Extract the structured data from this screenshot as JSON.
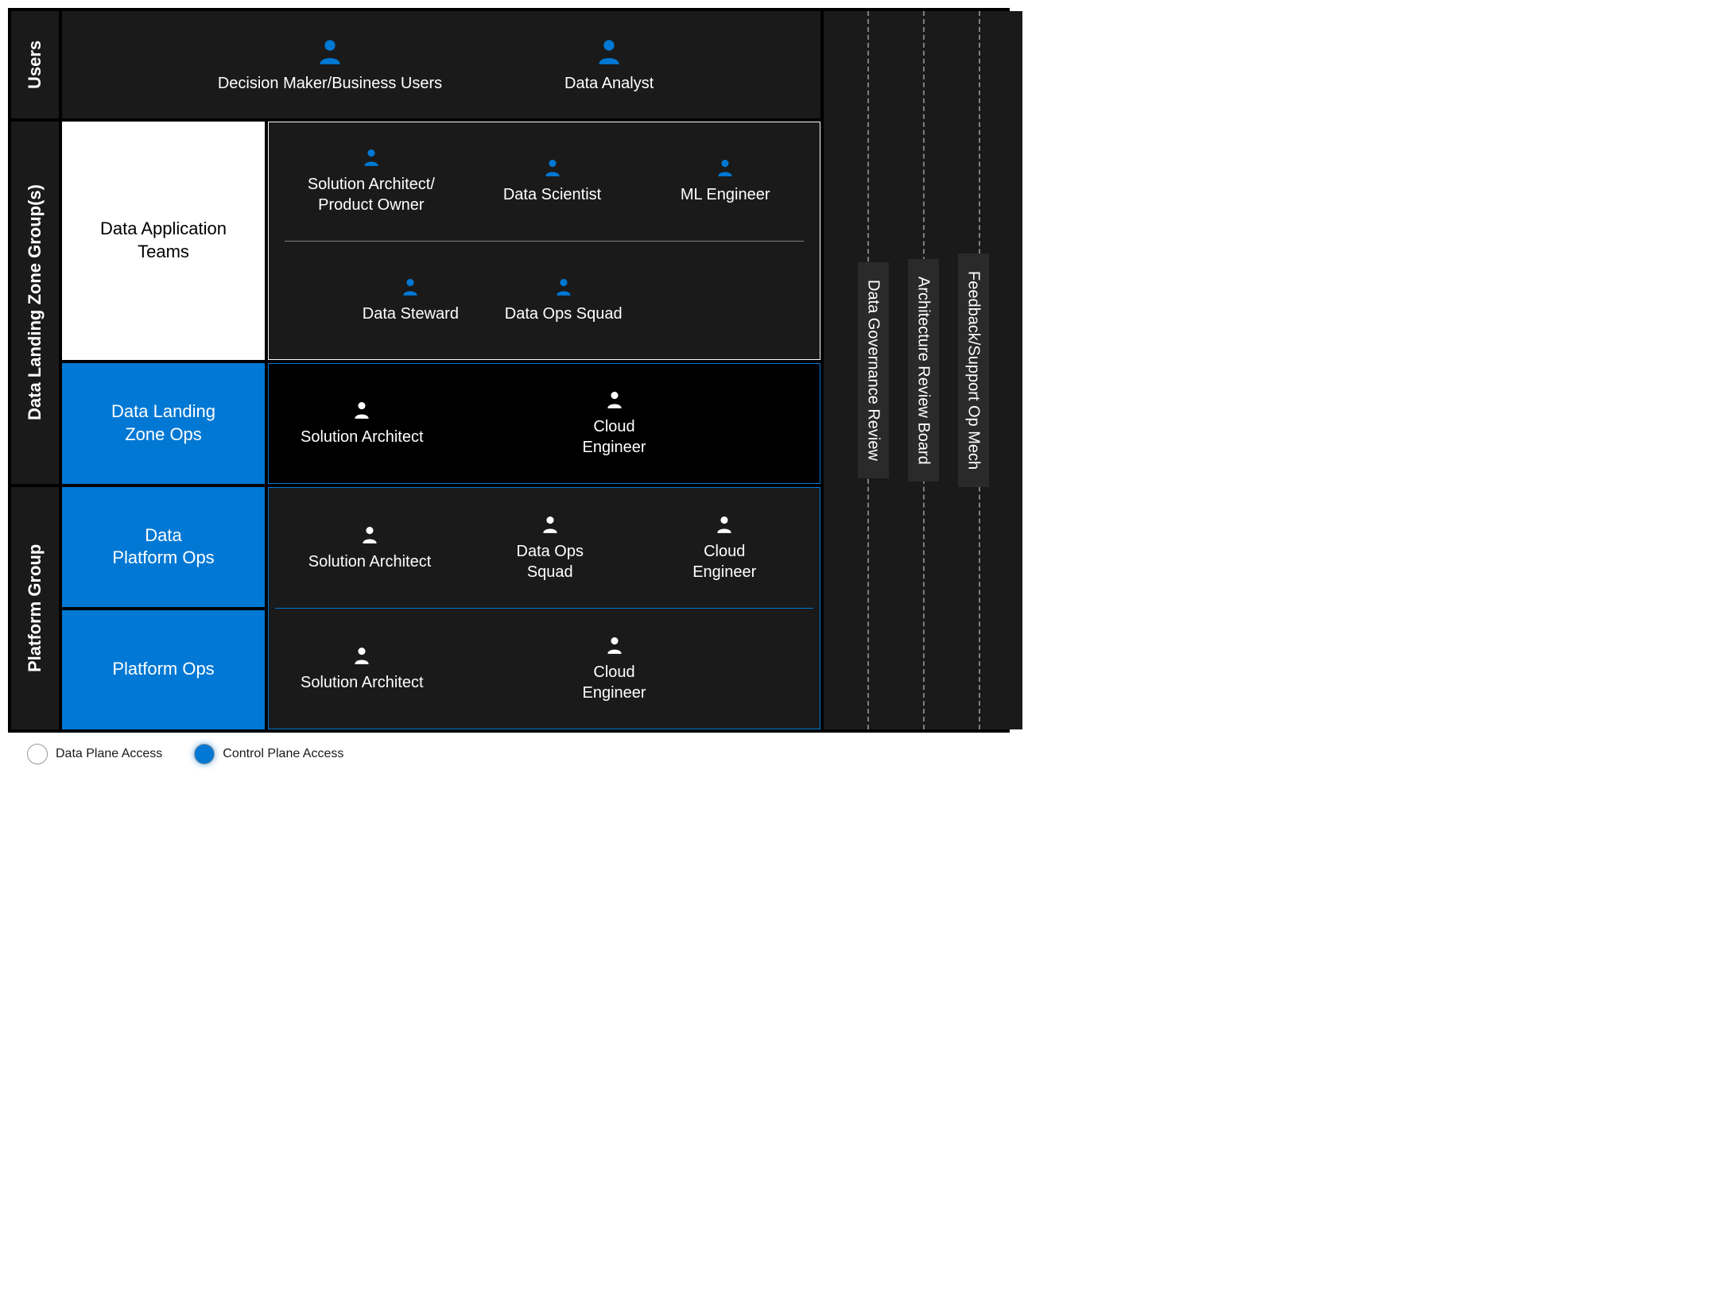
{
  "colors": {
    "bg": "#000000",
    "panel": "#1a1a1a",
    "panel_light": "#2a2a2a",
    "white": "#ffffff",
    "blue": "#0078d4",
    "icon_blue": "#0078d4",
    "icon_white": "#ffffff",
    "divider": "#808080"
  },
  "section_labels": {
    "users": "Users",
    "dlz": "Data Landing Zone Group(s)",
    "platform": "Platform Group"
  },
  "users_row": [
    {
      "label": "Decision Maker/Business Users",
      "icon_color": "#0078d4"
    },
    {
      "label": "Data Analyst",
      "icon_color": "#0078d4"
    }
  ],
  "dlz": {
    "app_teams_label": "Data Application\nTeams",
    "app_teams_roles_top": [
      {
        "label": "Solution Architect/\nProduct Owner",
        "icon_color": "#0078d4"
      },
      {
        "label": "Data Scientist",
        "icon_color": "#0078d4"
      },
      {
        "label": "ML Engineer",
        "icon_color": "#0078d4"
      }
    ],
    "app_teams_roles_bottom": [
      {
        "label": "Data Steward",
        "icon_color": "#0078d4"
      },
      {
        "label": "Data Ops Squad",
        "icon_color": "#0078d4"
      }
    ],
    "ops_label": "Data Landing\nZone Ops",
    "ops_roles": [
      {
        "label": "Solution Architect",
        "icon_color": "#ffffff"
      },
      {
        "label": "Cloud\nEngineer",
        "icon_color": "#ffffff"
      }
    ]
  },
  "platform": {
    "data_ops_label": "Data\nPlatform Ops",
    "data_ops_roles": [
      {
        "label": "Solution Architect",
        "icon_color": "#ffffff"
      },
      {
        "label": "Data Ops\nSquad",
        "icon_color": "#ffffff"
      },
      {
        "label": "Cloud\nEngineer",
        "icon_color": "#ffffff"
      }
    ],
    "platform_ops_label": "Platform Ops",
    "platform_ops_roles": [
      {
        "label": "Solution Architect",
        "icon_color": "#ffffff"
      },
      {
        "label": "Cloud\nEngineer",
        "icon_color": "#ffffff"
      }
    ]
  },
  "right_pills": [
    "Data Governance Review",
    "Architecture Review Board",
    "Feedback/Support Op Mech"
  ],
  "legend": {
    "data_plane": {
      "label": "Data Plane Access",
      "color": "#ffffff"
    },
    "control_plane": {
      "label": "Control Plane Access",
      "color": "#0078d4"
    }
  }
}
